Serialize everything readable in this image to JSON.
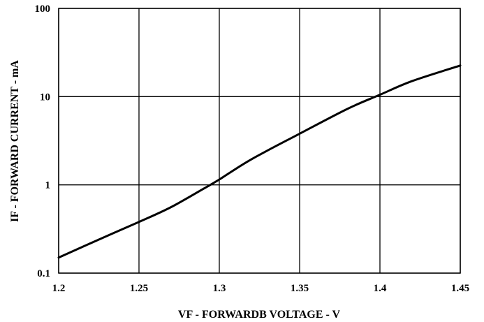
{
  "chart_data": {
    "type": "line",
    "title": "",
    "xlabel": "VF - FORWARDB VOLTAGE - V",
    "ylabel": "IF - FORWARD CURRENT - mA",
    "xlim": [
      1.2,
      1.45
    ],
    "ylim": [
      0.1,
      100
    ],
    "yscale": "log",
    "grid": true,
    "x_ticks": [
      "1.2",
      "1.25",
      "1.3",
      "1.35",
      "1.4",
      "1.45"
    ],
    "y_ticks": [
      "0.1",
      "1",
      "10",
      "100"
    ],
    "series": [
      {
        "x": [
          1.2,
          1.225,
          1.25,
          1.27,
          1.29,
          1.3,
          1.32,
          1.35,
          1.38,
          1.4,
          1.42,
          1.45
        ],
        "values": [
          0.15,
          0.24,
          0.38,
          0.56,
          0.9,
          1.15,
          1.95,
          3.8,
          7.3,
          10.5,
          15,
          22.5
        ]
      }
    ]
  }
}
